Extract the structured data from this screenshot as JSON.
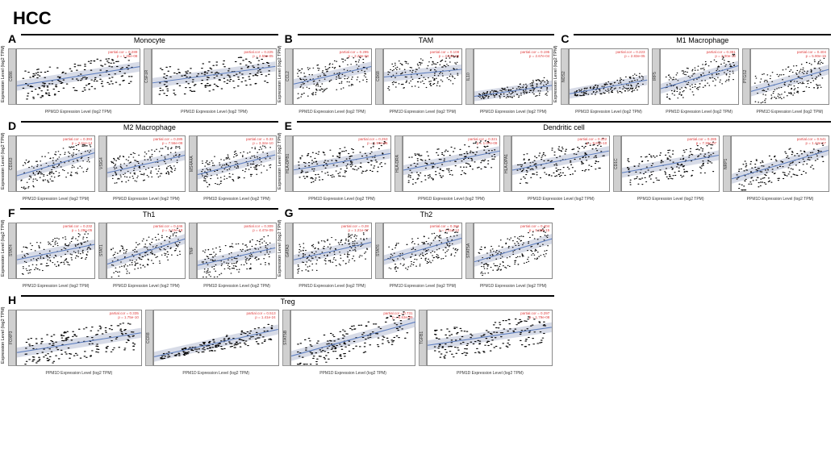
{
  "main_title": "HCC",
  "xlabel": "PPM1D Expression Level (log2 TPM)",
  "ylabel": "Expression Level (log2 TPM)",
  "point_color": "#000000",
  "line_color": "#6080c0",
  "ribbon_color": "#b0b8d0",
  "ribbon_opacity": 0.5,
  "stats_color": "#e04040",
  "groups": [
    {
      "letter": "A",
      "title": "Monocyte",
      "panels": [
        {
          "gene": "CD86",
          "cor": 0.289,
          "p": "1.45e-08",
          "slope": 0.35,
          "yint": 0.35
        },
        {
          "gene": "CSF1R",
          "cor": 0.225,
          "p": "2.55e-05",
          "slope": 0.3,
          "yint": 0.4
        }
      ]
    },
    {
      "letter": "B",
      "title": "TAM",
      "panels": [
        {
          "gene": "CCL2",
          "cor": 0.295,
          "p": "2.29e-08",
          "slope": 0.32,
          "yint": 0.38
        },
        {
          "gene": "CD68",
          "cor": 0.108,
          "p": "4.54e-02",
          "slope": 0.14,
          "yint": 0.5
        },
        {
          "gene": "IL10",
          "cor": 0.195,
          "p": "2.67e-04",
          "slope": 0.2,
          "yint": 0.15,
          "low": true
        }
      ]
    },
    {
      "letter": "C",
      "title": "M1 Macrophage",
      "panels": [
        {
          "gene": "NOS2",
          "cor": 0.223,
          "p": "2.83e-05",
          "slope": 0.25,
          "yint": 0.2,
          "low": true
        },
        {
          "gene": "IRF5",
          "cor": 0.381,
          "p": "2.00e-13",
          "slope": 0.42,
          "yint": 0.3
        },
        {
          "gene": "PTGS2",
          "cor": 0.404,
          "p": "5.90e-15",
          "slope": 0.4,
          "yint": 0.25
        }
      ]
    },
    {
      "letter": "D",
      "title": "M2 Macrophage",
      "panels": [
        {
          "gene": "CD163",
          "cor": 0.393,
          "p": "3.21e-14",
          "slope": 0.42,
          "yint": 0.3
        },
        {
          "gene": "VSIG4",
          "cor": 0.285,
          "p": "7.56e-08",
          "slope": 0.32,
          "yint": 0.35
        },
        {
          "gene": "MS4A4A",
          "cor": 0.33,
          "p": "3.34e-10",
          "slope": 0.36,
          "yint": 0.32
        }
      ]
    },
    {
      "letter": "E",
      "title": "Dendritic cell",
      "wide": true,
      "panels": [
        {
          "gene": "HLA-DPB1",
          "cor": 0.253,
          "p": "1.97e-06",
          "slope": 0.3,
          "yint": 0.4
        },
        {
          "gene": "HLA-DRA",
          "cor": 0.321,
          "p": "1.07e-09",
          "slope": 0.35,
          "yint": 0.4
        },
        {
          "gene": "HLA-DPA1",
          "cor": 0.322,
          "p": "9.67e-10",
          "slope": 0.35,
          "yint": 0.4
        },
        {
          "gene": "CD1C",
          "cor": 0.285,
          "p": "7.30e-07",
          "slope": 0.32,
          "yint": 0.35
        },
        {
          "gene": "NRP1",
          "cor": 0.541,
          "p": "1.43e-27",
          "slope": 0.52,
          "yint": 0.25
        }
      ]
    },
    {
      "letter": "F",
      "title": "Th1",
      "panels": [
        {
          "gene": "STAT4",
          "cor": 0.232,
          "p": "1.29e-05",
          "slope": 0.28,
          "yint": 0.35
        },
        {
          "gene": "STAT1",
          "cor": 0.446,
          "p": "3.10e-18",
          "slope": 0.46,
          "yint": 0.28
        },
        {
          "gene": "TNF",
          "cor": 0.309,
          "p": "4.47e-09",
          "slope": 0.32,
          "yint": 0.25
        }
      ]
    },
    {
      "letter": "G",
      "title": "Th2",
      "panels": [
        {
          "gene": "GATA3",
          "cor": 0.28,
          "p": "1.21e-07",
          "slope": 0.32,
          "yint": 0.35
        },
        {
          "gene": "STAT6",
          "cor": 0.366,
          "p": "2.41e-12",
          "slope": 0.4,
          "yint": 0.35
        },
        {
          "gene": "STAT5A",
          "cor": 0.404,
          "p": "5.25e-15",
          "slope": 0.42,
          "yint": 0.32
        }
      ]
    },
    {
      "letter": "H",
      "title": "Treg",
      "row_h": true,
      "panels": [
        {
          "gene": "FOXP3",
          "cor": 0.335,
          "p": "1.75e-10",
          "slope": 0.36,
          "yint": 0.25
        },
        {
          "gene": "CCR8",
          "cor": 0.513,
          "p": "1.41e-24",
          "slope": 0.5,
          "yint": 0.18,
          "low": true
        },
        {
          "gene": "STAT5B",
          "cor": 0.731,
          "p": "5.63e-59",
          "slope": 0.62,
          "yint": 0.2
        },
        {
          "gene": "TGFB1",
          "cor": 0.297,
          "p": "1.79e-08",
          "slope": 0.33,
          "yint": 0.38
        }
      ]
    }
  ]
}
